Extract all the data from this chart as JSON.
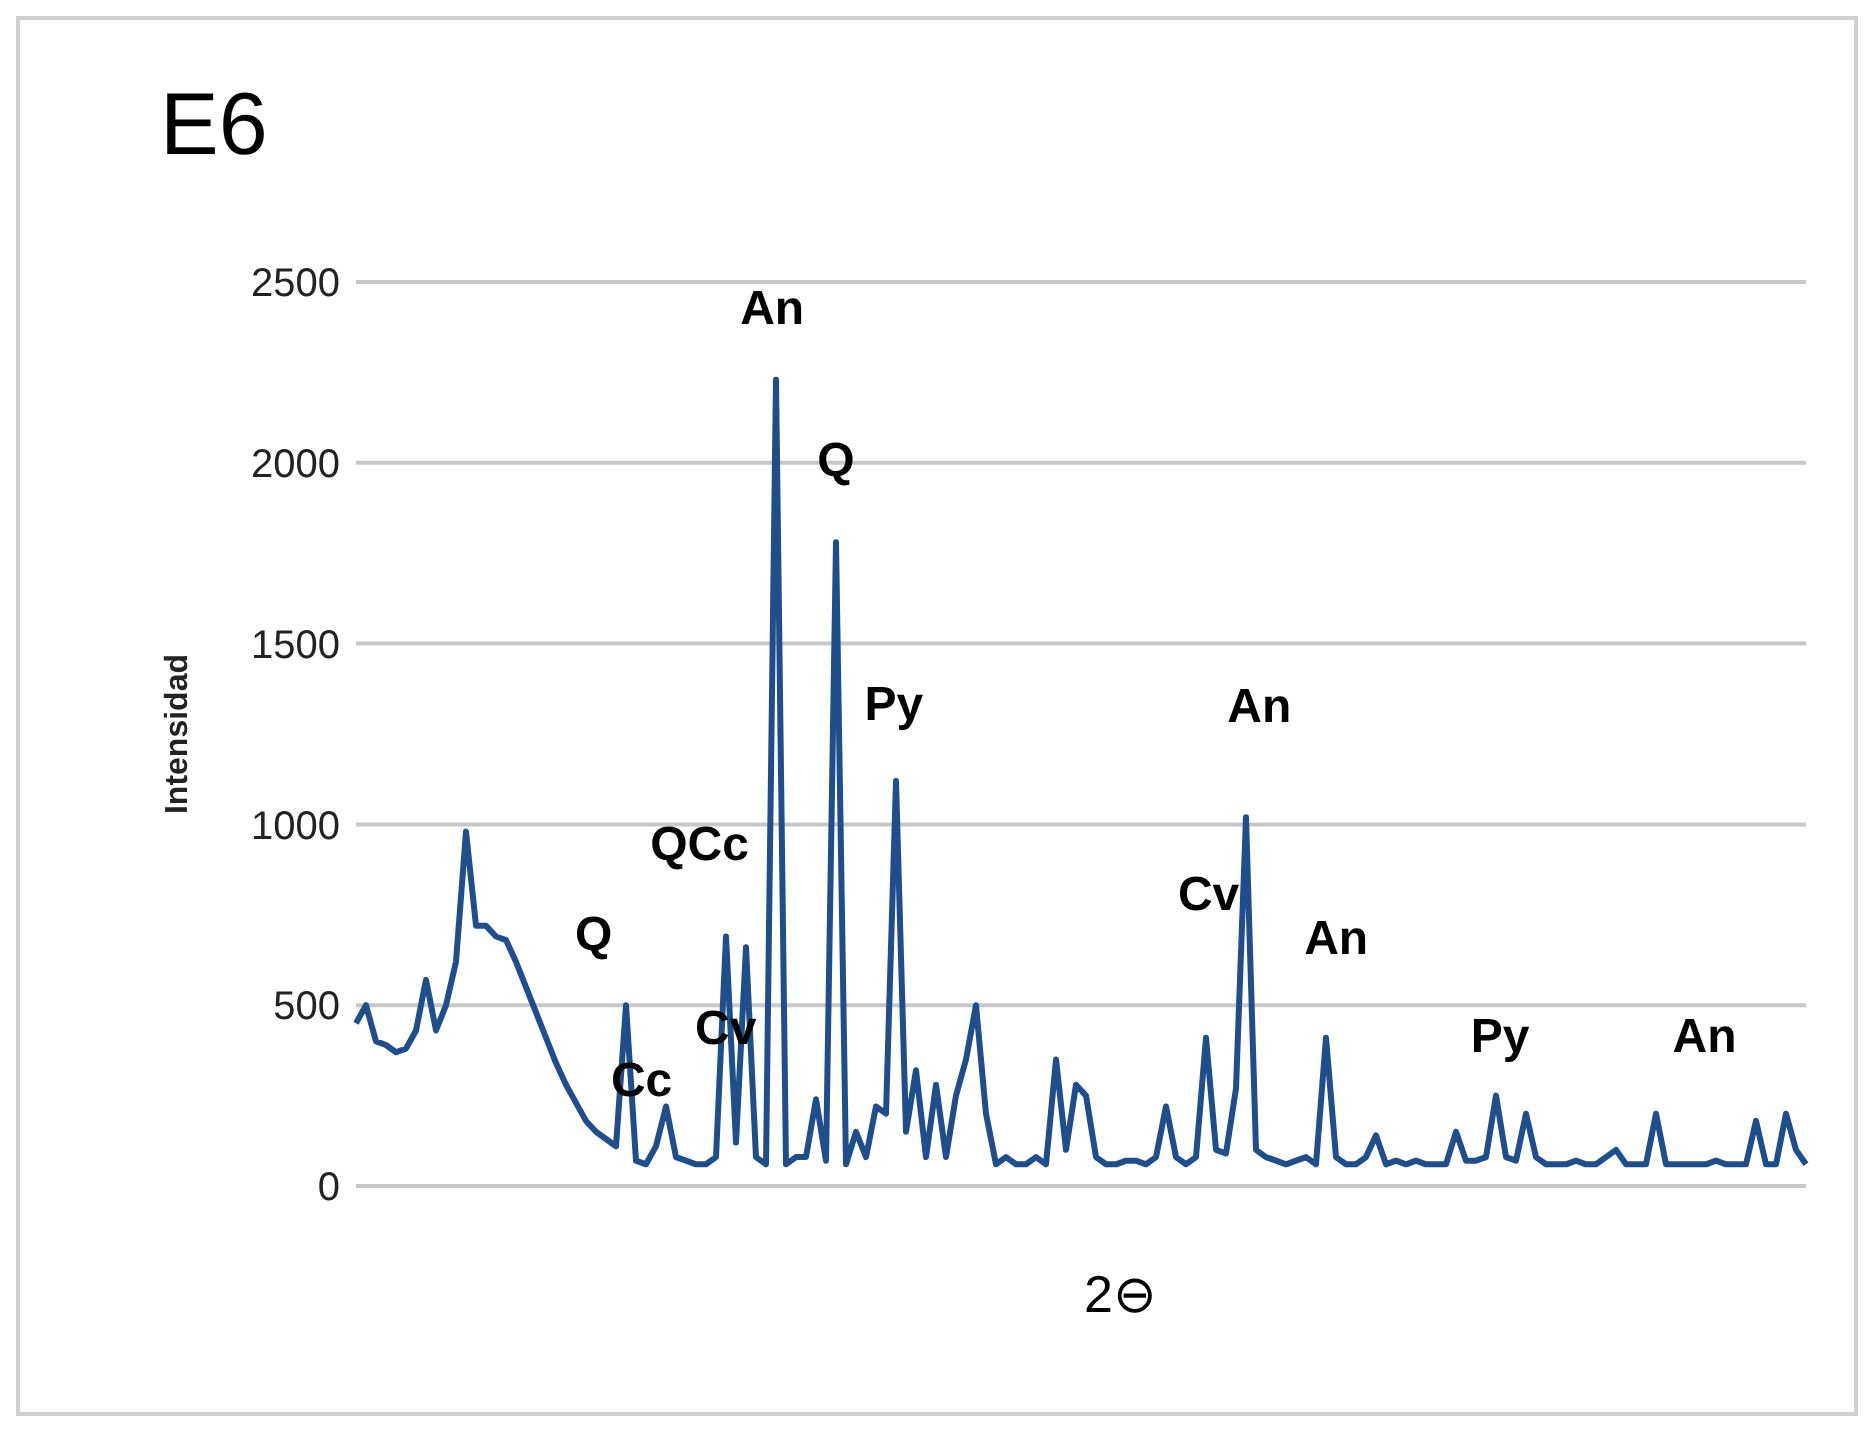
{
  "chart_data": {
    "type": "line",
    "title": "E6",
    "xlabel": "2⊖",
    "ylabel": "Intensidad",
    "categories": [
      null,
      null,
      null,
      null,
      null,
      null,
      null,
      null,
      null,
      null,
      null,
      null,
      null,
      null,
      null,
      null,
      null,
      null,
      null,
      null,
      null,
      null,
      null,
      null,
      null,
      null,
      null,
      null,
      null,
      null,
      null,
      null,
      null,
      null,
      null,
      null,
      null,
      null,
      null,
      null,
      null,
      null,
      null,
      null,
      null,
      null,
      null,
      null,
      null,
      null,
      null,
      null,
      null,
      null,
      null,
      null,
      null,
      null,
      null,
      null,
      null,
      null,
      null,
      null,
      null,
      null,
      null,
      null,
      null,
      null,
      null,
      null,
      null,
      null,
      null,
      null,
      null,
      null,
      null,
      null,
      null,
      null,
      null,
      null,
      null,
      null,
      null,
      null,
      null,
      null,
      null,
      null,
      null,
      null,
      null,
      null,
      null,
      null,
      null,
      null,
      null,
      null,
      null,
      null,
      null,
      null,
      null,
      null,
      null,
      null,
      null,
      null,
      null,
      null,
      null,
      null,
      null,
      null,
      null,
      null,
      null,
      null,
      null,
      null,
      null,
      null,
      null,
      null,
      null,
      null,
      null,
      null,
      null,
      null,
      null,
      null,
      null,
      null,
      null,
      null,
      null,
      null,
      null,
      null,
      null,
      null
    ],
    "ylim": [
      0,
      2500
    ],
    "yticks": [
      0,
      500,
      1000,
      1500,
      2000,
      2500
    ],
    "tick_labels": "y",
    "grid": "y",
    "legend": false,
    "marker": "none",
    "series": [
      {
        "color": "#1f4e8c",
        "values": [
          450,
          500,
          400,
          390,
          370,
          380,
          430,
          570,
          430,
          500,
          620,
          980,
          720,
          720,
          690,
          680,
          620,
          550,
          480,
          410,
          340,
          280,
          230,
          180,
          150,
          130,
          110,
          500,
          70,
          60,
          110,
          220,
          80,
          70,
          60,
          60,
          80,
          690,
          120,
          660,
          80,
          60,
          2230,
          60,
          80,
          80,
          240,
          70,
          1780,
          60,
          150,
          80,
          220,
          200,
          1120,
          150,
          320,
          80,
          280,
          80,
          250,
          350,
          500,
          200,
          60,
          80,
          60,
          60,
          80,
          60,
          350,
          100,
          280,
          250,
          80,
          60,
          60,
          70,
          70,
          60,
          80,
          220,
          80,
          60,
          80,
          410,
          100,
          90,
          270,
          1020,
          100,
          80,
          70,
          60,
          70,
          80,
          60,
          410,
          80,
          60,
          60,
          80,
          140,
          60,
          70,
          60,
          70,
          60,
          60,
          60,
          150,
          70,
          70,
          80,
          250,
          80,
          70,
          200,
          80,
          60,
          60,
          60,
          70,
          60,
          60,
          80,
          100,
          60,
          60,
          60,
          200,
          60,
          60,
          60,
          60,
          60,
          70,
          60,
          60,
          60,
          180,
          60,
          60,
          200,
          100,
          60
        ]
      }
    ],
    "annotations": [
      "An",
      "Q",
      "Py",
      "An",
      "QCc",
      "Q",
      "Cv",
      "Cc",
      "Cv",
      "An",
      "Py",
      "An"
    ]
  }
}
